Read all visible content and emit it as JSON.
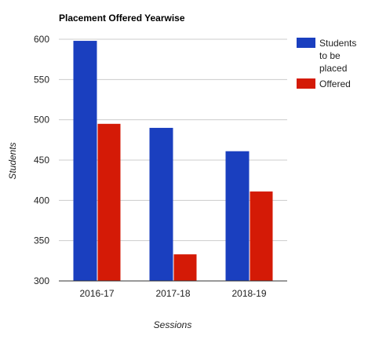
{
  "chart_data": {
    "type": "bar",
    "title": "Placement Offered Yearwise",
    "xlabel": "Sessions",
    "ylabel": "Students",
    "categories": [
      "2016-17",
      "2017-18",
      "2018-19"
    ],
    "series": [
      {
        "name": "Students to be placed",
        "legend_lines": [
          "Students",
          "to be",
          "placed"
        ],
        "color": "#1a3fbf",
        "values": [
          598,
          490,
          461
        ]
      },
      {
        "name": "Offered",
        "legend_lines": [
          "Offered"
        ],
        "color": "#d41a06",
        "values": [
          495,
          333,
          411
        ]
      }
    ],
    "ylim": [
      300,
      600
    ],
    "yticks": [
      600,
      550,
      500,
      450,
      400,
      350,
      300
    ],
    "grid": true,
    "legend": "right"
  }
}
